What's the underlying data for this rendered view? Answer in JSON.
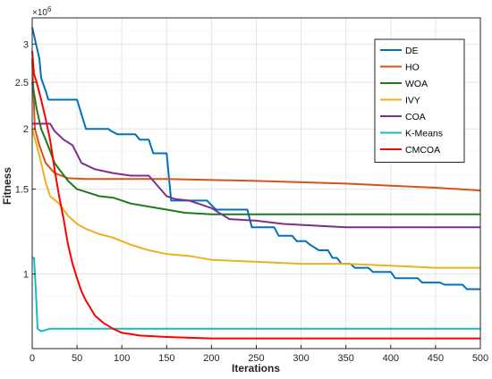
{
  "chart_data": {
    "type": "line",
    "xlabel": "Iterations",
    "ylabel": "Fitness",
    "y_exponent_label": "×10",
    "y_exponent_power": "6",
    "xlim": [
      0,
      500
    ],
    "ylim": [
      0.7,
      3.4
    ],
    "y_scale": "log",
    "grid": true,
    "legend_position": "top-right",
    "x_ticks": [
      0,
      50,
      100,
      150,
      200,
      250,
      300,
      350,
      400,
      450,
      500
    ],
    "y_ticks": [
      1,
      1.5,
      2,
      2.5,
      3
    ],
    "series": [
      {
        "name": "DE",
        "color": "#0072BD",
        "points": [
          [
            0,
            3.25
          ],
          [
            8,
            2.8
          ],
          [
            10,
            2.55
          ],
          [
            15,
            2.4
          ],
          [
            18,
            2.3
          ],
          [
            25,
            2.3
          ],
          [
            50,
            2.3
          ],
          [
            60,
            2.0
          ],
          [
            85,
            2.0
          ],
          [
            88,
            1.98
          ],
          [
            95,
            1.95
          ],
          [
            115,
            1.95
          ],
          [
            120,
            1.9
          ],
          [
            130,
            1.9
          ],
          [
            135,
            1.78
          ],
          [
            150,
            1.78
          ],
          [
            155,
            1.42
          ],
          [
            195,
            1.42
          ],
          [
            205,
            1.36
          ],
          [
            240,
            1.36
          ],
          [
            245,
            1.25
          ],
          [
            270,
            1.25
          ],
          [
            275,
            1.2
          ],
          [
            290,
            1.2
          ],
          [
            295,
            1.17
          ],
          [
            305,
            1.17
          ],
          [
            310,
            1.15
          ],
          [
            320,
            1.12
          ],
          [
            330,
            1.12
          ],
          [
            335,
            1.08
          ],
          [
            340,
            1.08
          ],
          [
            345,
            1.05
          ],
          [
            355,
            1.05
          ],
          [
            360,
            1.03
          ],
          [
            375,
            1.03
          ],
          [
            380,
            1.01
          ],
          [
            400,
            1.01
          ],
          [
            405,
            0.98
          ],
          [
            430,
            0.98
          ],
          [
            435,
            0.96
          ],
          [
            440,
            0.96
          ],
          [
            455,
            0.96
          ],
          [
            460,
            0.95
          ],
          [
            480,
            0.95
          ],
          [
            485,
            0.93
          ],
          [
            500,
            0.93
          ]
        ]
      },
      {
        "name": "HO",
        "color": "#D95319",
        "points": [
          [
            0,
            2.8
          ],
          [
            3,
            2.0
          ],
          [
            8,
            1.85
          ],
          [
            15,
            1.7
          ],
          [
            25,
            1.62
          ],
          [
            40,
            1.58
          ],
          [
            60,
            1.575
          ],
          [
            150,
            1.575
          ],
          [
            250,
            1.56
          ],
          [
            300,
            1.55
          ],
          [
            350,
            1.54
          ],
          [
            400,
            1.525
          ],
          [
            450,
            1.51
          ],
          [
            500,
            1.49
          ]
        ]
      },
      {
        "name": "WOA",
        "color": "#1F7A1F",
        "points": [
          [
            0,
            2.5
          ],
          [
            5,
            2.2
          ],
          [
            10,
            2.0
          ],
          [
            15,
            1.9
          ],
          [
            20,
            1.8
          ],
          [
            25,
            1.7
          ],
          [
            30,
            1.65
          ],
          [
            40,
            1.56
          ],
          [
            50,
            1.5
          ],
          [
            60,
            1.48
          ],
          [
            75,
            1.45
          ],
          [
            90,
            1.44
          ],
          [
            110,
            1.4
          ],
          [
            130,
            1.38
          ],
          [
            150,
            1.36
          ],
          [
            170,
            1.34
          ],
          [
            200,
            1.33
          ],
          [
            300,
            1.33
          ],
          [
            400,
            1.33
          ],
          [
            500,
            1.33
          ]
        ]
      },
      {
        "name": "IVY",
        "color": "#EDB120",
        "points": [
          [
            0,
            2.0
          ],
          [
            5,
            1.85
          ],
          [
            10,
            1.7
          ],
          [
            15,
            1.55
          ],
          [
            20,
            1.45
          ],
          [
            30,
            1.4
          ],
          [
            40,
            1.32
          ],
          [
            50,
            1.27
          ],
          [
            60,
            1.24
          ],
          [
            75,
            1.21
          ],
          [
            90,
            1.19
          ],
          [
            110,
            1.15
          ],
          [
            130,
            1.12
          ],
          [
            150,
            1.1
          ],
          [
            175,
            1.09
          ],
          [
            200,
            1.07
          ],
          [
            250,
            1.06
          ],
          [
            300,
            1.05
          ],
          [
            350,
            1.05
          ],
          [
            400,
            1.04
          ],
          [
            450,
            1.03
          ],
          [
            500,
            1.03
          ]
        ]
      },
      {
        "name": "COA",
        "color": "#7E2F8E",
        "points": [
          [
            0,
            2.05
          ],
          [
            20,
            2.05
          ],
          [
            25,
            1.98
          ],
          [
            35,
            1.9
          ],
          [
            45,
            1.85
          ],
          [
            55,
            1.7
          ],
          [
            70,
            1.65
          ],
          [
            90,
            1.62
          ],
          [
            110,
            1.6
          ],
          [
            130,
            1.6
          ],
          [
            150,
            1.45
          ],
          [
            160,
            1.43
          ],
          [
            175,
            1.42
          ],
          [
            185,
            1.4
          ],
          [
            200,
            1.37
          ],
          [
            220,
            1.3
          ],
          [
            250,
            1.29
          ],
          [
            280,
            1.27
          ],
          [
            350,
            1.25
          ],
          [
            400,
            1.25
          ],
          [
            500,
            1.25
          ]
        ]
      },
      {
        "name": "K-Means",
        "color": "#11BFBF",
        "points": [
          [
            0,
            1.08
          ],
          [
            2,
            1.08
          ],
          [
            4,
            0.93
          ],
          [
            6,
            0.77
          ],
          [
            10,
            0.76
          ],
          [
            20,
            0.77
          ],
          [
            30,
            0.77
          ],
          [
            100,
            0.77
          ],
          [
            200,
            0.77
          ],
          [
            300,
            0.77
          ],
          [
            400,
            0.77
          ],
          [
            500,
            0.77
          ]
        ]
      },
      {
        "name": "CMCOA",
        "color": "#FF0000",
        "points": [
          [
            0,
            2.9
          ],
          [
            2,
            2.6
          ],
          [
            5,
            2.5
          ],
          [
            10,
            2.3
          ],
          [
            15,
            2.1
          ],
          [
            20,
            1.9
          ],
          [
            25,
            1.65
          ],
          [
            30,
            1.45
          ],
          [
            35,
            1.3
          ],
          [
            40,
            1.15
          ],
          [
            45,
            1.05
          ],
          [
            50,
            0.98
          ],
          [
            55,
            0.92
          ],
          [
            60,
            0.88
          ],
          [
            65,
            0.85
          ],
          [
            70,
            0.82
          ],
          [
            80,
            0.79
          ],
          [
            90,
            0.77
          ],
          [
            100,
            0.755
          ],
          [
            120,
            0.745
          ],
          [
            150,
            0.74
          ],
          [
            200,
            0.735
          ],
          [
            300,
            0.735
          ],
          [
            400,
            0.735
          ],
          [
            500,
            0.735
          ]
        ]
      }
    ]
  }
}
